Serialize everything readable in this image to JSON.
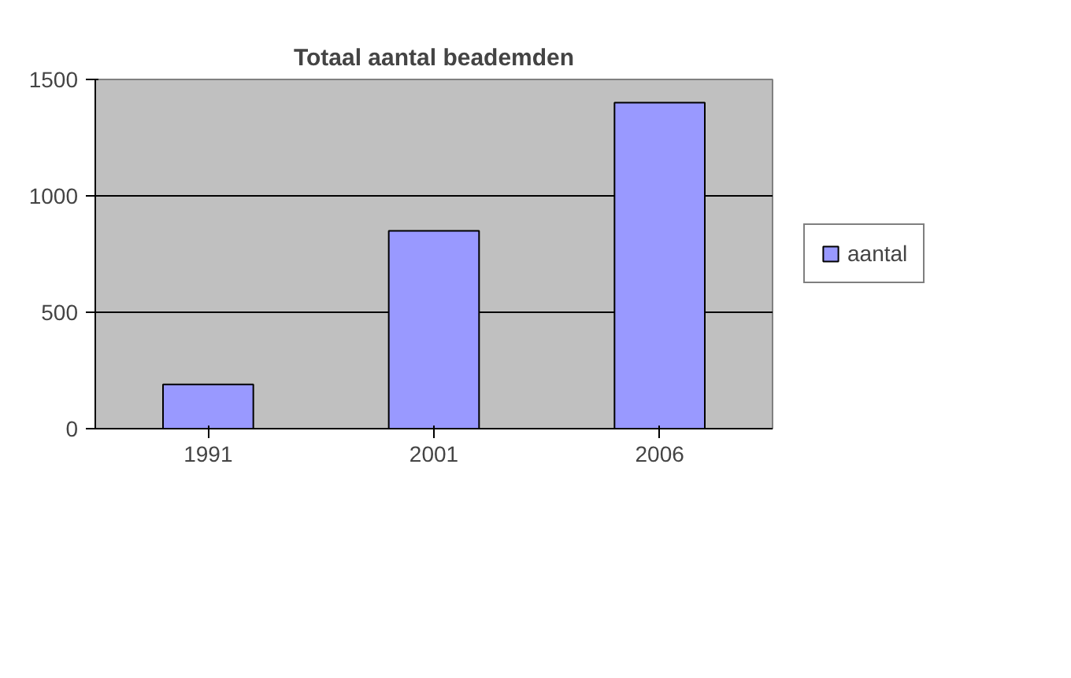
{
  "chart_data": {
    "type": "bar",
    "title": "Totaal aantal beademden",
    "categories": [
      "1991",
      "2001",
      "2006"
    ],
    "series": [
      {
        "name": "aantal",
        "color": "#9999ff",
        "values": [
          190,
          850,
          1400
        ]
      }
    ],
    "ylim": [
      0,
      1500
    ],
    "yticks": [
      0,
      500,
      1000,
      1500
    ],
    "grid": "y",
    "legend": "right"
  }
}
